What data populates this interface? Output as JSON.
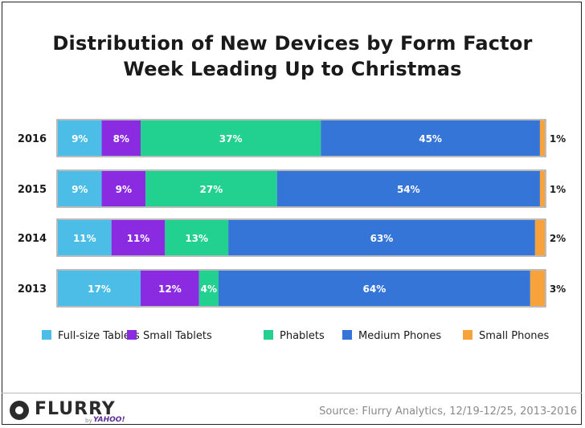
{
  "title_line1": "Distribution of New Devices by Form Factor",
  "title_line2": "Week Leading Up to Christmas",
  "source": "Source: Flurry Analytics, 12/19-12/25, 2013-2016",
  "logo": {
    "wordmark": "FLURRY",
    "by": "by",
    "parent": "YAHOO!"
  },
  "chart_data": {
    "type": "bar",
    "orientation": "horizontal",
    "stacked": true,
    "normalized_percent": true,
    "categories": [
      "2016",
      "2015",
      "2014",
      "2013"
    ],
    "series": [
      {
        "name": "Full-size Tablets",
        "color": "#4bbde7",
        "values": [
          9,
          9,
          11,
          17
        ],
        "labels": [
          "9%",
          "9%",
          "11%",
          "17%"
        ]
      },
      {
        "name": "Small Tablets",
        "color": "#8a2be2",
        "values": [
          8,
          9,
          11,
          12
        ],
        "labels": [
          "8%",
          "9%",
          "11%",
          "12%"
        ]
      },
      {
        "name": "Phablets",
        "color": "#22d08f",
        "values": [
          37,
          27,
          13,
          4
        ],
        "labels": [
          "37%",
          "27%",
          "13%",
          "4%"
        ]
      },
      {
        "name": "Medium Phones",
        "color": "#3575d8",
        "values": [
          45,
          54,
          63,
          64
        ],
        "labels": [
          "45%",
          "54%",
          "63%",
          "64%"
        ]
      },
      {
        "name": "Small Phones",
        "color": "#f7a23b",
        "values": [
          1,
          1,
          2,
          3
        ],
        "labels": [
          "1%",
          "1%",
          "2%",
          "3%"
        ]
      }
    ],
    "legend_position": "bottom",
    "grid": false
  }
}
